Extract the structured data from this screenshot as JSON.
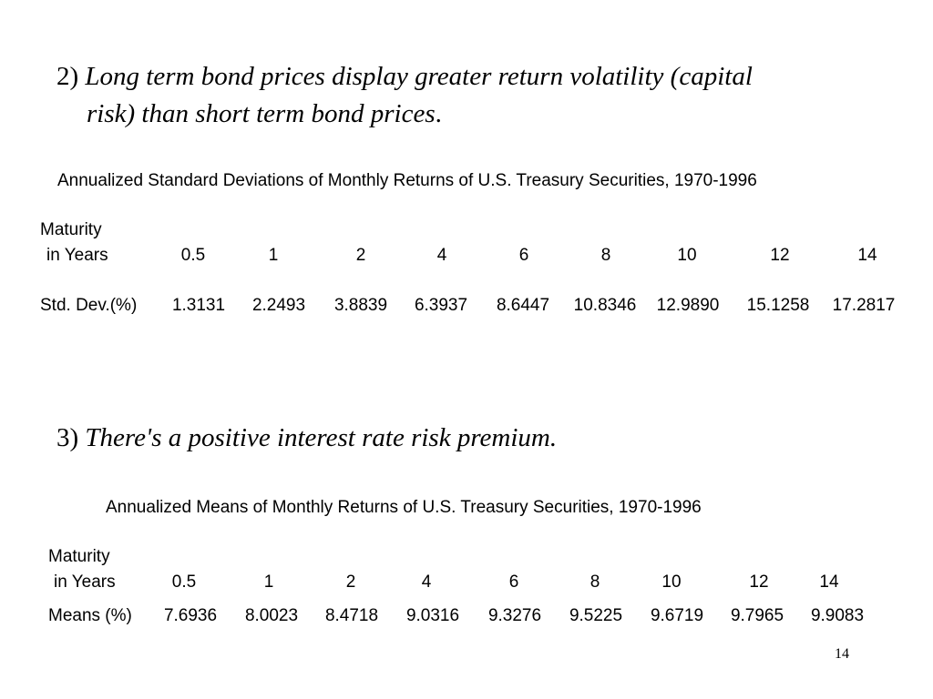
{
  "point2": {
    "number": "2)",
    "text_line1": "Long term bond prices display greater return volatility (",
    "text_capital": "capital",
    "text_risk": "risk",
    "text_line2": ") than short term bond prices",
    "period": "."
  },
  "table1": {
    "title": "Annualized Standard Deviations of Monthly Returns of U.S. Treasury Securities, 1970-1996",
    "header_label_line1": "Maturity",
    "header_label_line2": "in Years",
    "maturities": [
      "0.5",
      "1",
      "2",
      "4",
      "6",
      "8",
      "10",
      "12",
      "14"
    ],
    "row_label": "Std. Dev.(%)",
    "values": [
      "1.3131",
      "2.2493",
      "3.8839",
      "6.3937",
      "8.6447",
      "10.8346",
      "12.9890",
      "15.1258",
      "17.2817"
    ]
  },
  "point3": {
    "number": "3)",
    "text": "There's a positive interest rate risk premium."
  },
  "table2": {
    "title": "Annualized Means of Monthly Returns of U.S. Treasury Securities, 1970-1996",
    "header_label_line1": "Maturity",
    "header_label_line2": "in Years",
    "maturities": [
      "0.5",
      "1",
      "2",
      "4",
      "6",
      "8",
      "10",
      "12",
      "14"
    ],
    "row_label": "Means (%)",
    "values": [
      "7.6936",
      "8.0023",
      "8.4718",
      "9.0316",
      "9.3276",
      "9.5225",
      "9.6719",
      "9.7965",
      "9.9083"
    ]
  },
  "footer": {
    "page_number": "14"
  }
}
